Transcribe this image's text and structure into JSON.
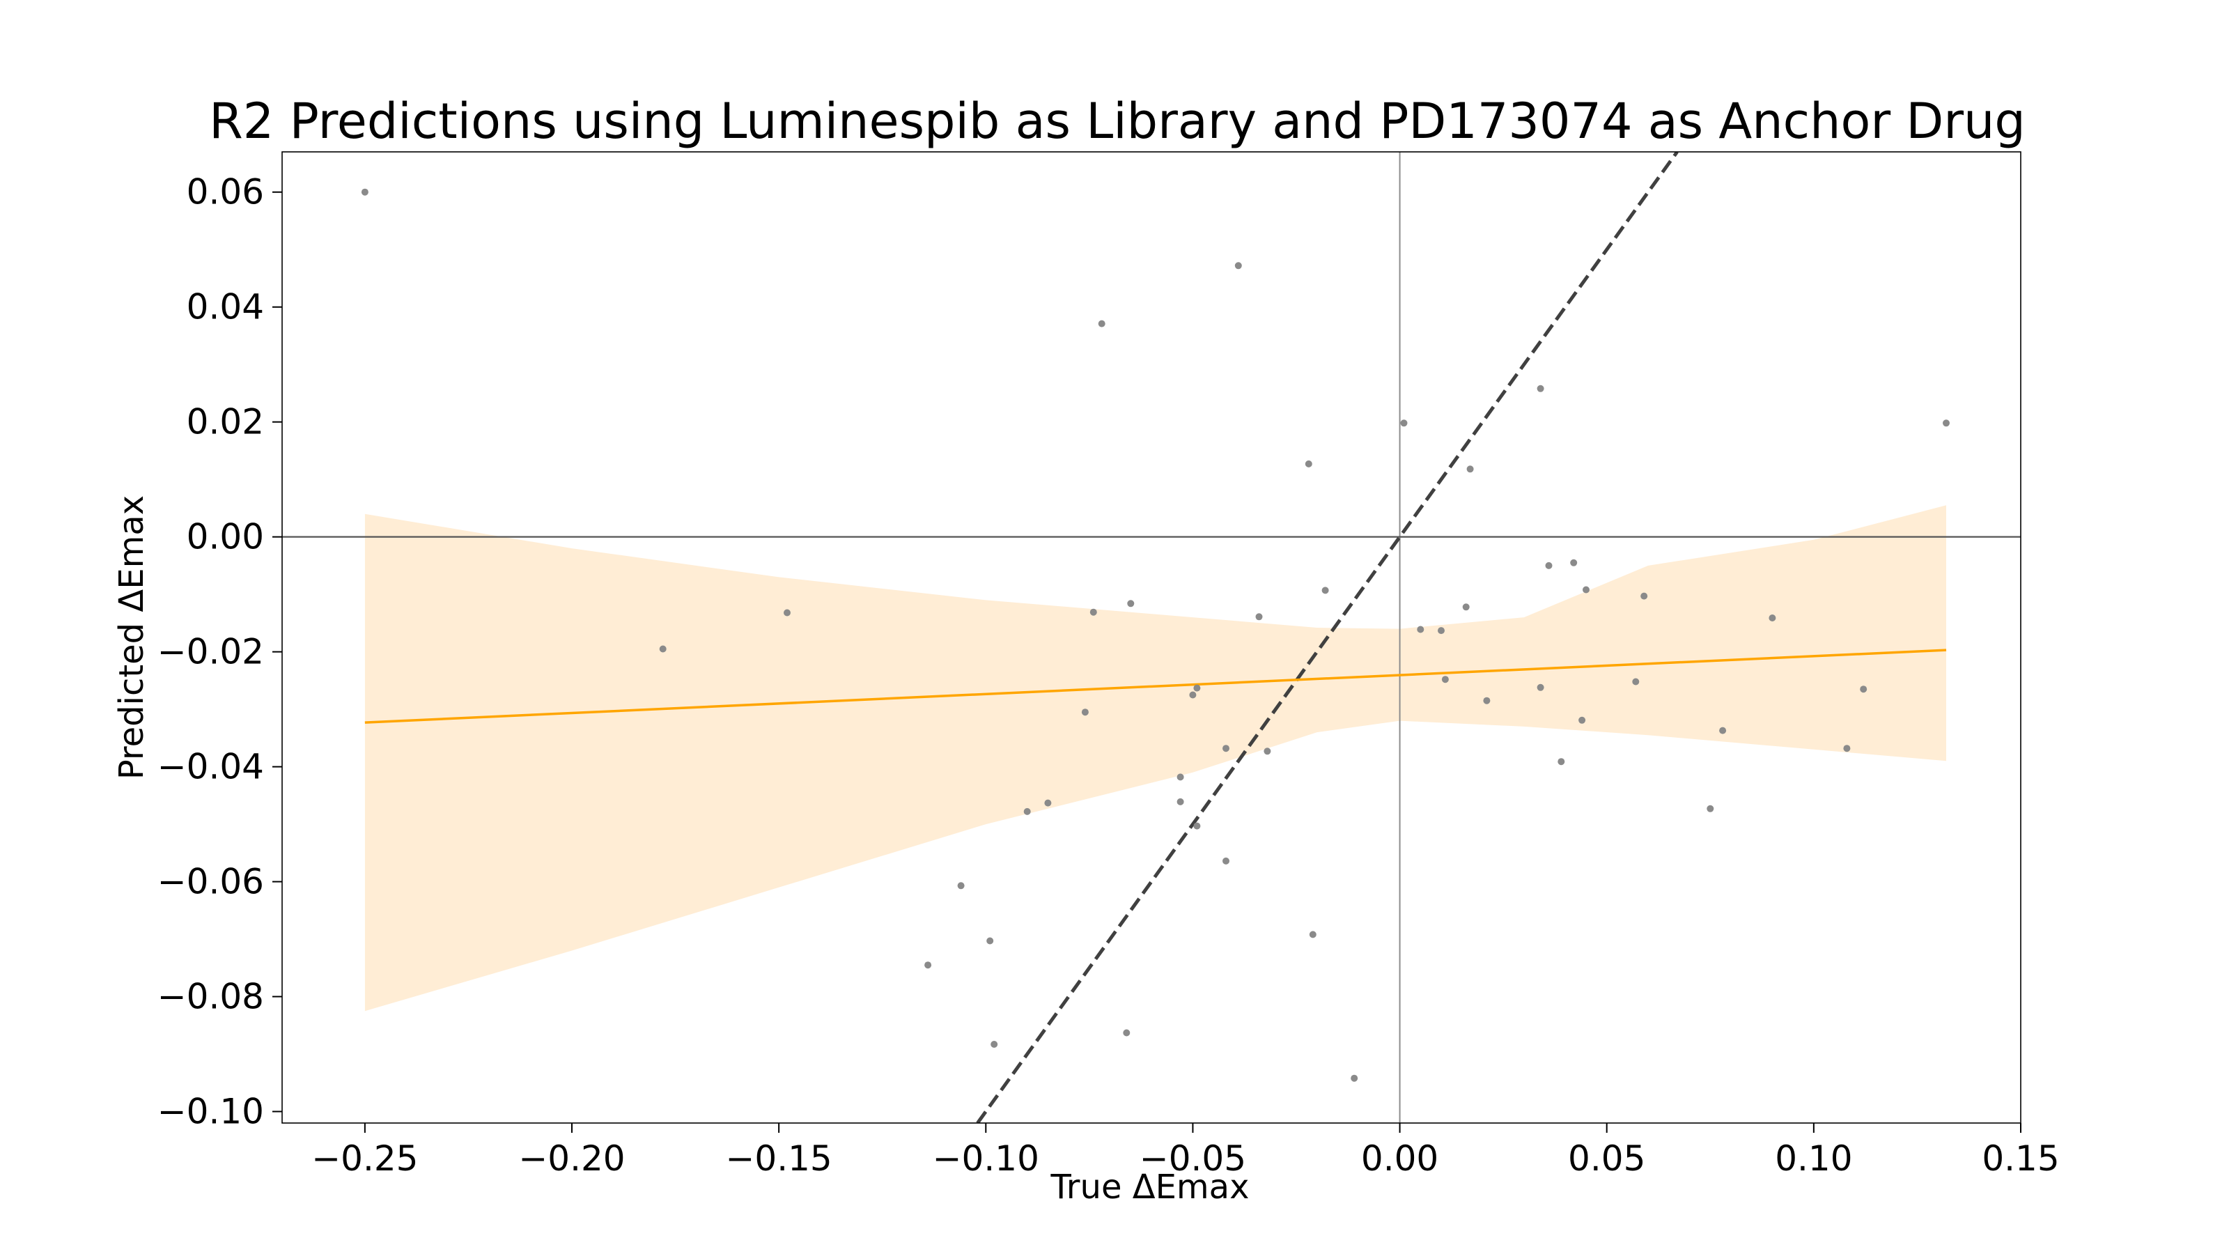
{
  "chart_data": {
    "type": "scatter",
    "title": "R2 Predictions using Luminespib as Library and PD173074 as Anchor Drug",
    "xlabel": "True ΔEmax",
    "ylabel": "Predicted ΔEmax",
    "xlim": [
      -0.27,
      0.15
    ],
    "ylim": [
      -0.102,
      0.067
    ],
    "xticks": [
      -0.25,
      -0.2,
      -0.15,
      -0.1,
      -0.05,
      0.0,
      0.05,
      0.1,
      0.15
    ],
    "xtick_labels": [
      "−0.25",
      "−0.20",
      "−0.15",
      "−0.10",
      "−0.05",
      "0.00",
      "0.05",
      "0.10",
      "0.15"
    ],
    "yticks": [
      0.06,
      0.04,
      0.02,
      0.0,
      -0.02,
      -0.04,
      -0.06,
      -0.08,
      -0.1
    ],
    "ytick_labels": [
      "0.06",
      "0.04",
      "0.02",
      "0.00",
      "−0.02",
      "−0.04",
      "−0.06",
      "−0.08",
      "−0.10"
    ],
    "grid": false,
    "reference_lines": {
      "x": 0,
      "y": 0
    },
    "identity_line": true,
    "regression_line": {
      "x": [
        -0.25,
        0.132
      ],
      "y": [
        -0.0323,
        -0.0197
      ]
    },
    "confidence_band": {
      "x": [
        -0.25,
        -0.2,
        -0.15,
        -0.1,
        -0.05,
        -0.02,
        0.0,
        0.03,
        0.06,
        0.1,
        0.132
      ],
      "lower": [
        -0.0825,
        -0.072,
        -0.061,
        -0.05,
        -0.041,
        -0.034,
        -0.032,
        -0.033,
        -0.0345,
        -0.037,
        -0.039
      ],
      "upper": [
        0.004,
        -0.002,
        -0.007,
        -0.011,
        -0.014,
        -0.0158,
        -0.016,
        -0.014,
        -0.005,
        -0.0005,
        0.0055
      ]
    },
    "points": [
      {
        "x": -0.25,
        "y": 0.06
      },
      {
        "x": -0.178,
        "y": -0.0195
      },
      {
        "x": -0.148,
        "y": -0.0132
      },
      {
        "x": -0.114,
        "y": -0.0745
      },
      {
        "x": -0.106,
        "y": -0.0607
      },
      {
        "x": -0.099,
        "y": -0.0703
      },
      {
        "x": -0.098,
        "y": -0.0883
      },
      {
        "x": -0.09,
        "y": -0.0478
      },
      {
        "x": -0.085,
        "y": -0.0463
      },
      {
        "x": -0.076,
        "y": -0.0305
      },
      {
        "x": -0.074,
        "y": -0.0131
      },
      {
        "x": -0.072,
        "y": 0.0371
      },
      {
        "x": -0.066,
        "y": -0.0863
      },
      {
        "x": -0.065,
        "y": -0.0116
      },
      {
        "x": -0.053,
        "y": -0.0418
      },
      {
        "x": -0.053,
        "y": -0.0461
      },
      {
        "x": -0.05,
        "y": -0.0275
      },
      {
        "x": -0.049,
        "y": -0.0263
      },
      {
        "x": -0.049,
        "y": -0.0503
      },
      {
        "x": -0.042,
        "y": -0.0368
      },
      {
        "x": -0.042,
        "y": -0.0564
      },
      {
        "x": -0.039,
        "y": 0.0472
      },
      {
        "x": -0.034,
        "y": -0.0139
      },
      {
        "x": -0.032,
        "y": -0.0373
      },
      {
        "x": -0.022,
        "y": 0.0127
      },
      {
        "x": -0.021,
        "y": -0.0692
      },
      {
        "x": -0.018,
        "y": -0.0093
      },
      {
        "x": -0.011,
        "y": -0.0942
      },
      {
        "x": 0.001,
        "y": 0.0198
      },
      {
        "x": 0.005,
        "y": -0.0161
      },
      {
        "x": 0.01,
        "y": -0.0163
      },
      {
        "x": 0.011,
        "y": -0.0248
      },
      {
        "x": 0.016,
        "y": -0.0122
      },
      {
        "x": 0.017,
        "y": 0.0118
      },
      {
        "x": 0.021,
        "y": -0.0285
      },
      {
        "x": 0.034,
        "y": 0.0258
      },
      {
        "x": 0.034,
        "y": -0.0262
      },
      {
        "x": 0.036,
        "y": -0.005
      },
      {
        "x": 0.039,
        "y": -0.0391
      },
      {
        "x": 0.042,
        "y": -0.0045
      },
      {
        "x": 0.044,
        "y": -0.0319
      },
      {
        "x": 0.045,
        "y": -0.0092
      },
      {
        "x": 0.057,
        "y": -0.0252
      },
      {
        "x": 0.059,
        "y": -0.0103
      },
      {
        "x": 0.075,
        "y": -0.0473
      },
      {
        "x": 0.078,
        "y": -0.0337
      },
      {
        "x": 0.09,
        "y": -0.0141
      },
      {
        "x": 0.108,
        "y": -0.0368
      },
      {
        "x": 0.112,
        "y": -0.0265
      },
      {
        "x": 0.132,
        "y": 0.0198
      }
    ],
    "colors": {
      "points": "#8a8a8a",
      "regression": "#ffa500",
      "band": "#ffedd5",
      "identity": "#404040",
      "axes": "#000000",
      "zero_lines": "#555555"
    }
  }
}
